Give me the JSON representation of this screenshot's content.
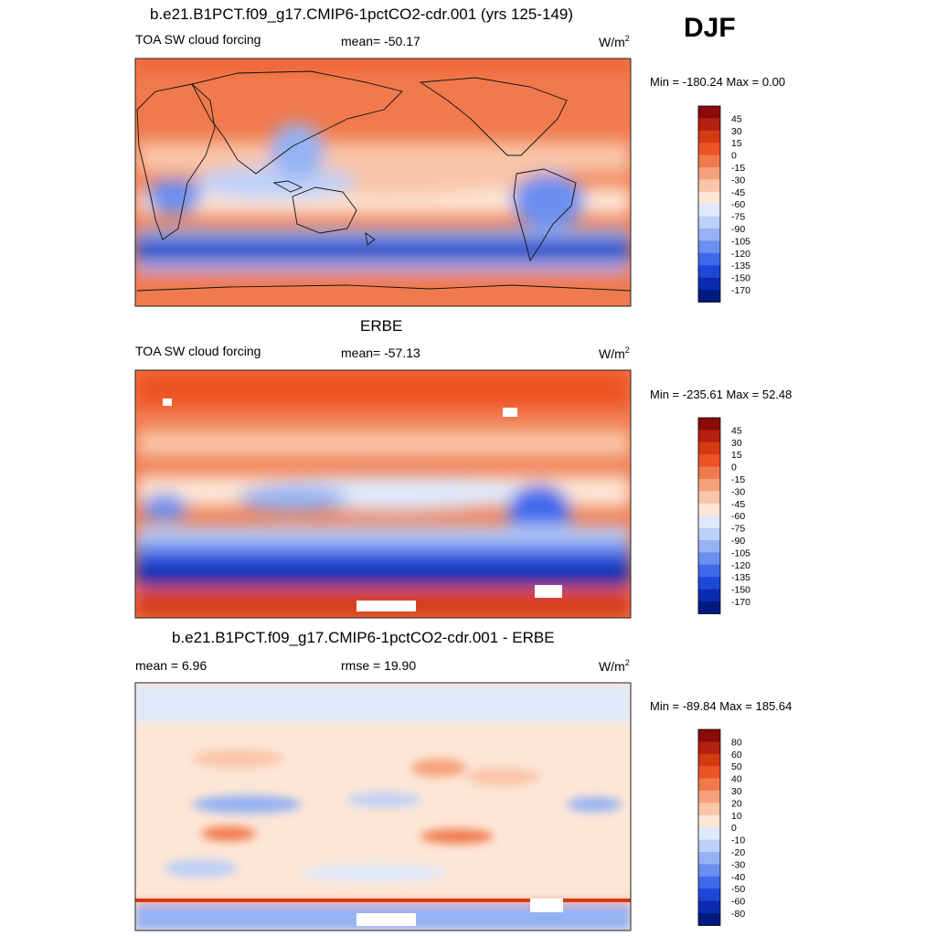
{
  "season": "DJF",
  "panels": [
    {
      "title": "b.e21.B1PCT.f09_g17.CMIP6-1pctCO2-cdr.001 (yrs 125-149)",
      "left_label": "TOA SW cloud forcing",
      "center_label": "mean= -50.17",
      "units": "W/m",
      "units_sup": "2",
      "minmax": "Min = -180.24 Max =   0.00",
      "colorbar": {
        "labels": [
          "45",
          "30",
          "15",
          "0",
          "-15",
          "-30",
          "-45",
          "-60",
          "-75",
          "-90",
          "-105",
          "-120",
          "-135",
          "-150",
          "-170"
        ],
        "colors": [
          "#8b0a0a",
          "#b3200f",
          "#d63a13",
          "#ee5324",
          "#f07a4e",
          "#f5a27c",
          "#f9c5a8",
          "#fde6d6",
          "#dfe9fb",
          "#bdd0f8",
          "#95b2f3",
          "#6b8ff0",
          "#3f69ec",
          "#1d47d8",
          "#0a2bb0",
          "#001a80"
        ]
      },
      "map_type": "model"
    },
    {
      "title": "ERBE",
      "left_label": "TOA SW cloud forcing",
      "center_label": "mean= -57.13",
      "units": "W/m",
      "units_sup": "2",
      "minmax": "Min = -235.61 Max =  52.48",
      "colorbar": {
        "labels": [
          "45",
          "30",
          "15",
          "0",
          "-15",
          "-30",
          "-45",
          "-60",
          "-75",
          "-90",
          "-105",
          "-120",
          "-135",
          "-150",
          "-170"
        ],
        "colors": [
          "#8b0a0a",
          "#b3200f",
          "#d63a13",
          "#ee5324",
          "#f07a4e",
          "#f5a27c",
          "#f9c5a8",
          "#fde6d6",
          "#dfe9fb",
          "#bdd0f8",
          "#95b2f3",
          "#6b8ff0",
          "#3f69ec",
          "#1d47d8",
          "#0a2bb0",
          "#001a80"
        ]
      },
      "map_type": "obs"
    },
    {
      "title": "b.e21.B1PCT.f09_g17.CMIP6-1pctCO2-cdr.001 - ERBE",
      "left_label": "mean =   6.96",
      "center_label": "rmse =  19.90",
      "units": "W/m",
      "units_sup": "2",
      "minmax": "Min = -89.84 Max = 185.64",
      "colorbar": {
        "labels": [
          "80",
          "60",
          "50",
          "40",
          "30",
          "20",
          "10",
          "0",
          "-10",
          "-20",
          "-30",
          "-40",
          "-50",
          "-60",
          "-80"
        ],
        "colors": [
          "#8b0a0a",
          "#b3200f",
          "#d63a13",
          "#ee5324",
          "#f07a4e",
          "#f5a27c",
          "#f9c5a8",
          "#fde6d6",
          "#dfe9fb",
          "#bdd0f8",
          "#95b2f3",
          "#6b8ff0",
          "#3f69ec",
          "#1d47d8",
          "#0a2bb0",
          "#001a80"
        ]
      },
      "map_type": "diff"
    }
  ]
}
